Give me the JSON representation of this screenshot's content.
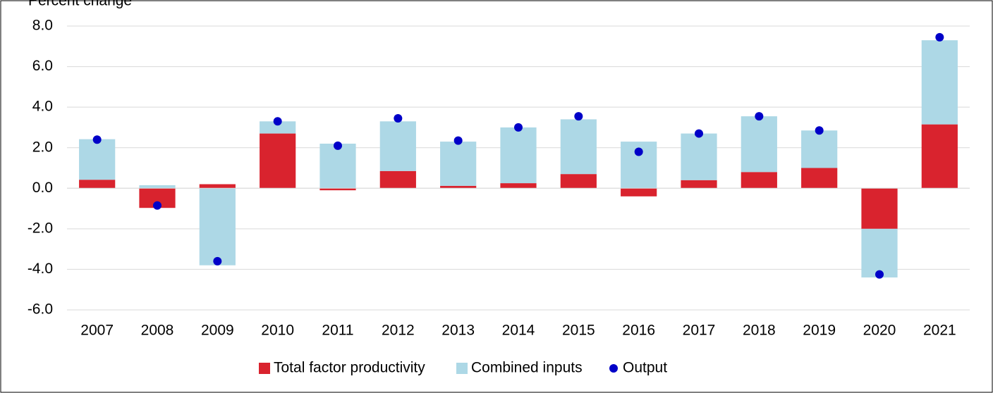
{
  "chart_data": {
    "type": "stacked-bar-dot",
    "ylabel": "Percent change",
    "categories": [
      "2007",
      "2008",
      "2009",
      "2010",
      "2011",
      "2012",
      "2013",
      "2014",
      "2015",
      "2016",
      "2017",
      "2018",
      "2019",
      "2020",
      "2021"
    ],
    "series": [
      {
        "name": "Total factor productivity",
        "color": "#d9232e",
        "kind": "bar",
        "values": [
          0.42,
          -0.97,
          0.2,
          2.7,
          -0.1,
          0.85,
          0.12,
          0.25,
          0.7,
          -0.4,
          0.4,
          0.8,
          1.0,
          -2.0,
          3.15
        ]
      },
      {
        "name": "Combined inputs",
        "color": "#add8e6",
        "kind": "bar",
        "values": [
          2.0,
          0.15,
          -3.8,
          0.6,
          2.2,
          2.45,
          2.18,
          2.75,
          2.7,
          2.3,
          2.3,
          2.75,
          1.85,
          -2.4,
          4.15
        ]
      },
      {
        "name": "Output",
        "color": "#0000c8",
        "kind": "dot",
        "values": [
          2.4,
          -0.85,
          -3.6,
          3.3,
          2.1,
          3.45,
          2.35,
          3.0,
          3.55,
          1.8,
          2.7,
          3.55,
          2.85,
          -4.25,
          7.45
        ]
      }
    ],
    "ylim": [
      -6,
      8
    ],
    "yticks": [
      {
        "value": -6,
        "label": "-6.0"
      },
      {
        "value": -4,
        "label": "-4.0"
      },
      {
        "value": -2,
        "label": "-2.0"
      },
      {
        "value": 0,
        "label": "0.0"
      },
      {
        "value": 2,
        "label": "2.0"
      },
      {
        "value": 4,
        "label": "4.0"
      },
      {
        "value": 6,
        "label": "6.0"
      },
      {
        "value": 8,
        "label": "8.0"
      }
    ],
    "grid": true,
    "legend": "bottom"
  }
}
